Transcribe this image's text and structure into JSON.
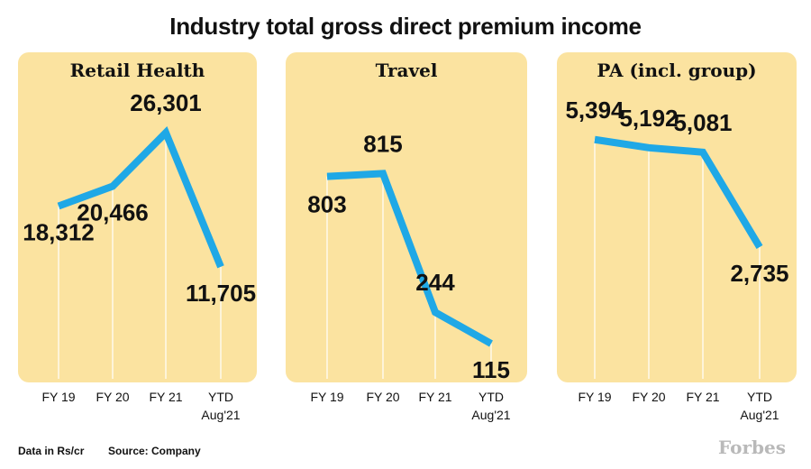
{
  "title": "Industry total gross direct premium income",
  "colors": {
    "panel_bg": "#fbe3a0",
    "line": "#1fa8e6",
    "grid": "#ffffff",
    "brand": "#b9b9b9"
  },
  "footer": {
    "units": "Data in Rs/cr",
    "source": "Source: Company",
    "brand": "Forbes"
  },
  "chart_data": [
    {
      "type": "line",
      "title": "Retail Health",
      "categories": [
        "FY 19",
        "FY 20",
        "FY 21",
        "YTD Aug'21"
      ],
      "values": [
        18312,
        20466,
        26301,
        11705
      ],
      "value_labels": [
        "18,312",
        "20,466",
        "26,301",
        "11,705"
      ],
      "ylim": [
        11000,
        27000
      ]
    },
    {
      "type": "line",
      "title": "Travel",
      "categories": [
        "FY 19",
        "FY 20",
        "FY 21",
        "YTD Aug'21"
      ],
      "values": [
        803,
        815,
        244,
        115
      ],
      "value_labels": [
        "803",
        "815",
        "244",
        "115"
      ],
      "ylim": [
        100,
        850
      ]
    },
    {
      "type": "line",
      "title": "PA (incl. group)",
      "categories": [
        "FY 19",
        "FY 20",
        "FY 21",
        "YTD Aug'21"
      ],
      "values": [
        5394,
        5192,
        5081,
        2735
      ],
      "value_labels": [
        "5,394",
        "5,192",
        "5,081",
        "2,735"
      ],
      "ylim": [
        2600,
        5500
      ]
    }
  ]
}
